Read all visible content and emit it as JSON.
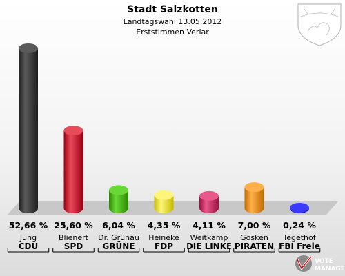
{
  "chart_data": {
    "type": "bar",
    "title": "Stadt Salzkotten",
    "subtitle_1": "Landtagswahl 13.05.2012",
    "subtitle_2": "Erststimmen Verlar",
    "ylim": [
      0,
      52.66
    ],
    "grid": false,
    "legend": "none",
    "categories": [
      {
        "candidate": "Jung",
        "party": "CDU",
        "value": 52.66,
        "label": "52,66 %",
        "color": "#3a3a3a",
        "dark": "#1e1e1e",
        "light": "#5a5a5a"
      },
      {
        "candidate": "Blienert",
        "party": "SPD",
        "value": 25.6,
        "label": "25,60 %",
        "color": "#d4001e",
        "dark": "#9a0012",
        "light": "#e84a5a"
      },
      {
        "candidate": "Dr. Grünau",
        "party": "GRÜNE",
        "value": 6.04,
        "label": "6,04 %",
        "color": "#3cb800",
        "dark": "#2a8a00",
        "light": "#6ad834"
      },
      {
        "candidate": "Heineke",
        "party": "FDP",
        "value": 4.35,
        "label": "4,35 %",
        "color": "#f2e600",
        "dark": "#c8bc00",
        "light": "#fff57a"
      },
      {
        "candidate": "Weitkamp",
        "party": "DIE LINKE",
        "value": 4.11,
        "label": "4,11 %",
        "color": "#d4185a",
        "dark": "#9c0f40",
        "light": "#e8588a"
      },
      {
        "candidate": "Gösken",
        "party": "PIRATEN",
        "value": 7.0,
        "label": "7,00 %",
        "color": "#f28c00",
        "dark": "#c06c00",
        "light": "#ffb04a"
      },
      {
        "candidate": "Tegethof",
        "party": "FBI Freie",
        "value": 0.24,
        "label": "0,24 %",
        "color": "#0000cc",
        "dark": "#000088",
        "light": "#3a3aff"
      }
    ]
  },
  "logo": {
    "line1": "VOTE",
    "line2": "MANAGER"
  }
}
